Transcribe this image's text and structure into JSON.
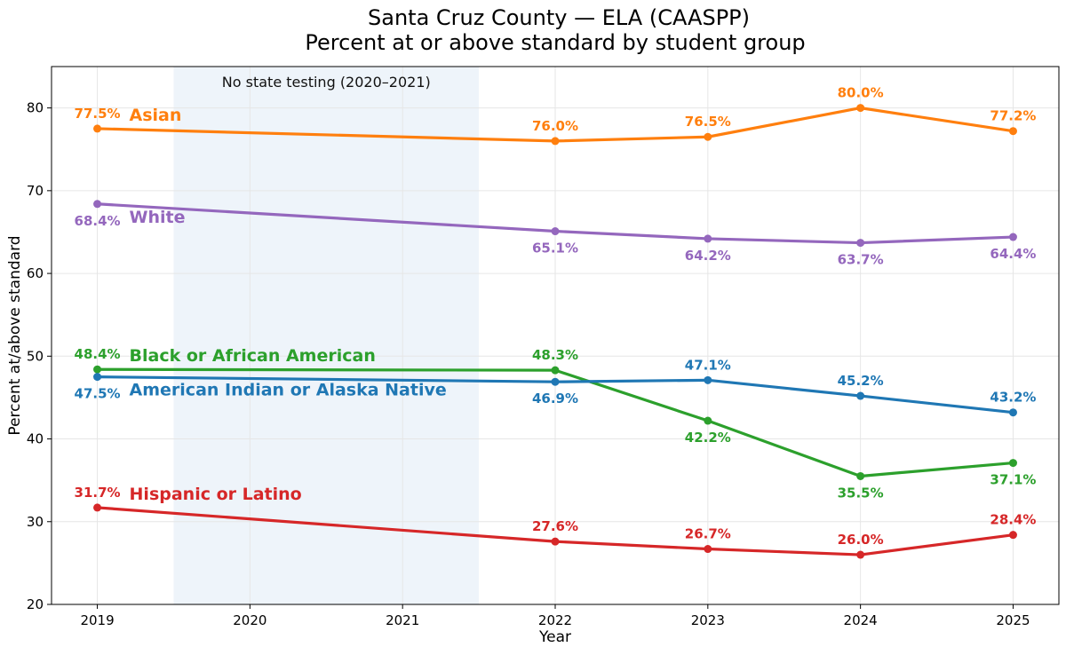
{
  "chart_data": {
    "type": "line",
    "title": "Santa Cruz County — ELA (CAASPP)",
    "subtitle": "Percent at or above standard by student group",
    "xlabel": "Year",
    "ylabel": "Percent at/above standard",
    "xlim": [
      2018.7,
      2025.3
    ],
    "ylim": [
      20,
      85
    ],
    "xticks": [
      2019,
      2020,
      2021,
      2022,
      2023,
      2024,
      2025
    ],
    "yticks": [
      20,
      30,
      40,
      50,
      60,
      70,
      80
    ],
    "grid": true,
    "annotation": {
      "text": "No state testing (2020–2021)",
      "from": 2019.5,
      "to": 2021.5,
      "color": "#eef4fa"
    },
    "x": [
      2019,
      2022,
      2023,
      2024,
      2025
    ],
    "series": [
      {
        "name": "Asian",
        "color": "#ff7f0e",
        "values": [
          77.5,
          76.0,
          76.5,
          80.0,
          77.2
        ],
        "labels": [
          "77.5%",
          "76.0%",
          "76.5%",
          "80.0%",
          "77.2%"
        ],
        "label_pos": [
          "above",
          "above",
          "above",
          "above",
          "above"
        ]
      },
      {
        "name": "White",
        "color": "#9467bd",
        "values": [
          68.4,
          65.1,
          64.2,
          63.7,
          64.4
        ],
        "labels": [
          "68.4%",
          "65.1%",
          "64.2%",
          "63.7%",
          "64.4%"
        ],
        "label_pos": [
          "below",
          "below",
          "below",
          "below",
          "below"
        ]
      },
      {
        "name": "Black or African American",
        "color": "#2ca02c",
        "values": [
          48.4,
          48.3,
          42.2,
          35.5,
          37.1
        ],
        "labels": [
          "48.4%",
          "48.3%",
          "42.2%",
          "35.5%",
          "37.1%"
        ],
        "label_pos": [
          "above",
          "above",
          "below",
          "below",
          "below"
        ]
      },
      {
        "name": "American Indian or Alaska Native",
        "color": "#1f77b4",
        "values": [
          47.5,
          46.9,
          47.1,
          45.2,
          43.2
        ],
        "labels": [
          "47.5%",
          "46.9%",
          "47.1%",
          "45.2%",
          "43.2%"
        ],
        "label_pos": [
          "below",
          "below",
          "above",
          "above",
          "above"
        ]
      },
      {
        "name": "Hispanic or Latino",
        "color": "#d62728",
        "values": [
          31.7,
          27.6,
          26.7,
          26.0,
          28.4
        ],
        "labels": [
          "31.7%",
          "27.6%",
          "26.7%",
          "26.0%",
          "28.4%"
        ],
        "label_pos": [
          "above",
          "above",
          "above",
          "above",
          "above"
        ]
      }
    ]
  }
}
